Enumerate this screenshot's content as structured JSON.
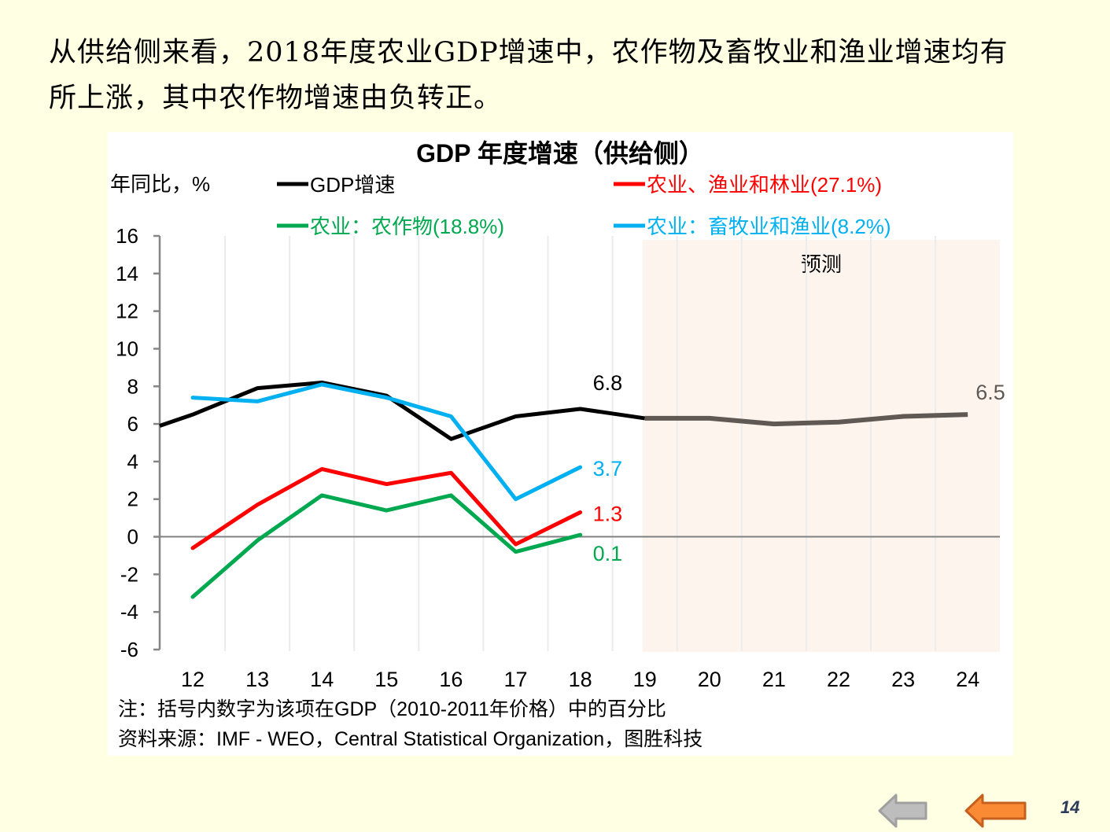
{
  "headline": {
    "line1": "从供给侧来看，2018年度农业GDP增速中，农作物及畜牧业和渔业增速均有",
    "line2": "所上涨，其中农作物增速由负转正。"
  },
  "chart_data": {
    "type": "line",
    "title": "GDP 年度增速（供给侧）",
    "ylabel": "年同比，%",
    "xlabel": "",
    "ylim": [
      -6,
      16
    ],
    "yticks": [
      16,
      14,
      12,
      10,
      8,
      6,
      4,
      2,
      0,
      -2,
      -4,
      -6
    ],
    "categories": [
      "12",
      "13",
      "14",
      "15",
      "16",
      "17",
      "18",
      "19",
      "20",
      "21",
      "22",
      "23",
      "24"
    ],
    "forecast_label": "预测",
    "forecast_start": "19",
    "grid": "vertical",
    "legend_position": "top",
    "series": [
      {
        "name": "GDP增速",
        "color": "#000000",
        "forecast_color": "#5f5853",
        "leading_value": 5.9,
        "values": [
          6.5,
          7.9,
          8.2,
          7.5,
          5.2,
          6.4,
          6.8,
          6.3,
          6.3,
          6.0,
          6.1,
          6.4,
          6.5
        ],
        "labels": [
          {
            "category": "18",
            "text": "6.8"
          },
          {
            "category": "24",
            "text": "6.5"
          }
        ]
      },
      {
        "name": "农业、渔业和林业(27.1%)",
        "color": "#ff0000",
        "values": [
          -0.6,
          1.7,
          3.6,
          2.8,
          3.4,
          -0.4,
          1.3
        ],
        "labels": [
          {
            "category": "18",
            "text": "1.3"
          }
        ]
      },
      {
        "name": "农业：农作物(18.8%)",
        "color": "#00a84f",
        "values": [
          -3.2,
          -0.2,
          2.2,
          1.4,
          2.2,
          -0.8,
          0.1
        ],
        "labels": [
          {
            "category": "18",
            "text": "0.1"
          }
        ]
      },
      {
        "name": "农业：畜牧业和渔业(8.2%)",
        "color": "#00b0f0",
        "values": [
          7.4,
          7.2,
          8.1,
          7.4,
          6.4,
          2.0,
          3.7
        ],
        "labels": [
          {
            "category": "18",
            "text": "3.7"
          }
        ]
      }
    ],
    "notes": [
      "注：括号内数字为该项在GDP（2010-2011年价格）中的百分比",
      "资料来源：IMF - WEO，Central Statistical Organization，图胜科技"
    ]
  },
  "nav": {
    "prev_label": "previous-page",
    "next_label": "next-page",
    "page_number": "14"
  }
}
